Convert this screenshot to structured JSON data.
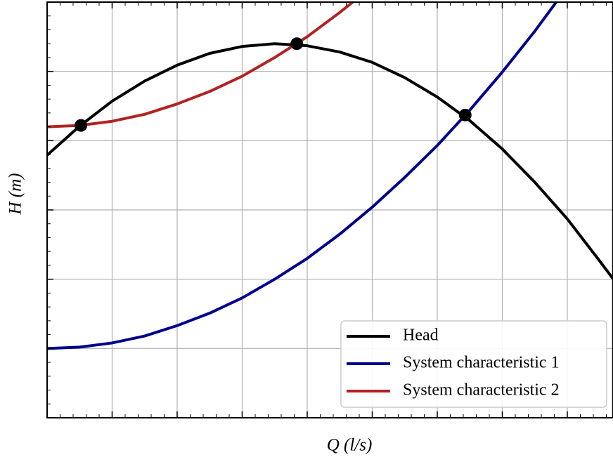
{
  "chart_data": {
    "type": "line",
    "x_label": "Q (l/s)",
    "y_label": "H (m)",
    "xlim": [
      0,
      8.7
    ],
    "ylim": [
      0,
      6
    ],
    "xticks": [
      0,
      1,
      2,
      3,
      4,
      5,
      6,
      7,
      8
    ],
    "yticks": [
      0,
      1,
      2,
      3,
      4,
      5,
      6
    ],
    "grid": true,
    "legend": "lower right",
    "series": [
      {
        "name": "Head",
        "color": "#000000",
        "x": [
          0,
          0.5,
          1,
          1.5,
          2,
          2.5,
          3,
          3.5,
          4,
          4.5,
          5,
          5.5,
          6,
          6.5,
          7,
          7.5,
          8,
          8.5,
          8.7
        ],
        "values": [
          3.79,
          4.21,
          4.57,
          4.86,
          5.09,
          5.26,
          5.36,
          5.4,
          5.37,
          5.28,
          5.13,
          4.91,
          4.63,
          4.29,
          3.88,
          3.4,
          2.87,
          2.26,
          2.01
        ]
      },
      {
        "name": "System characteristic 1",
        "color": "#00008b",
        "x": [
          0,
          0.5,
          1,
          1.5,
          2,
          2.5,
          3,
          3.5,
          4,
          4.5,
          5,
          5.5,
          6,
          6.5,
          7,
          7.5,
          7.83
        ],
        "values": [
          1.0,
          1.02,
          1.08,
          1.18,
          1.33,
          1.51,
          1.73,
          2.0,
          2.3,
          2.65,
          3.04,
          3.47,
          3.93,
          4.44,
          4.99,
          5.58,
          6.0
        ]
      },
      {
        "name": "System characteristic 2",
        "color": "#b22222",
        "x": [
          0,
          0.5,
          1,
          1.5,
          2,
          2.5,
          3,
          3.5,
          4,
          4.5,
          4.7
        ],
        "values": [
          4.2,
          4.22,
          4.28,
          4.38,
          4.53,
          4.71,
          4.93,
          5.2,
          5.5,
          5.85,
          6.0
        ]
      }
    ],
    "points": {
      "color": "#000000",
      "x": [
        0.52,
        3.84,
        6.43
      ],
      "values": [
        4.22,
        5.4,
        4.37
      ]
    }
  }
}
